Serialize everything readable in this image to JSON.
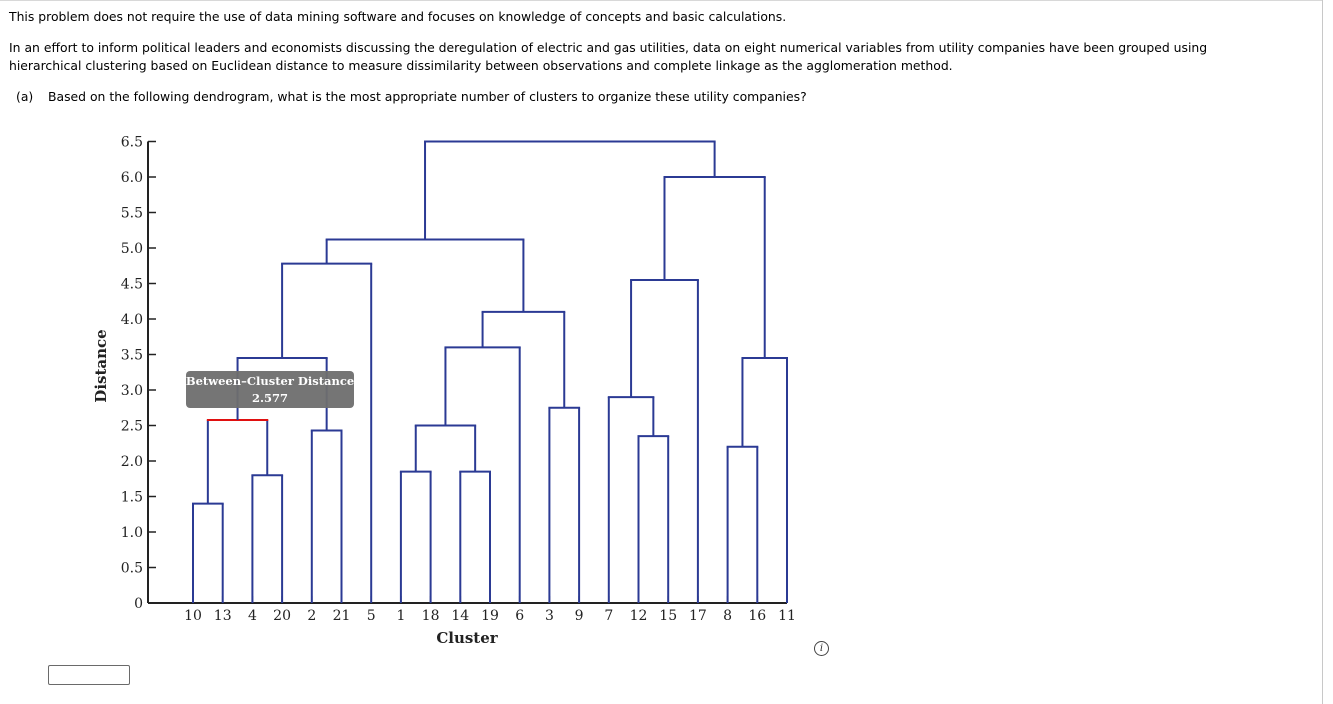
{
  "problem": {
    "intro": "This problem does not require the use of data mining software and focuses on knowledge of concepts and basic calculations.",
    "context_line1": "In an effort to inform political leaders and economists discussing the deregulation of electric and gas utilities, data on eight numerical variables from utility companies have been grouped using",
    "context_line2": "hierarchical clustering based on Euclidean distance to measure dissimilarity between observations and complete linkage as the agglomeration method.",
    "question_label": "(a)",
    "question_text": "Based on the following dendrogram, what is the most appropriate number of clusters to organize these utility companies?"
  },
  "answer": {
    "value": ""
  },
  "info_icon": {
    "glyph": "i"
  },
  "chart_data": {
    "type": "dendrogram",
    "title": "",
    "xlabel": "Cluster",
    "ylabel": "Distance",
    "ylim": [
      0,
      6.5
    ],
    "y_ticks": [
      "0",
      "0.5",
      "1.0",
      "1.5",
      "2.0",
      "2.5",
      "3.0",
      "3.5",
      "4.0",
      "4.5",
      "5.0",
      "5.5",
      "6.0",
      "6.5"
    ],
    "leaf_order": [
      "10",
      "13",
      "4",
      "20",
      "2",
      "21",
      "5",
      "1",
      "18",
      "14",
      "19",
      "6",
      "3",
      "9",
      "7",
      "12",
      "15",
      "17",
      "8",
      "16",
      "11"
    ],
    "merges": [
      {
        "left": "10",
        "right": "13",
        "height": 1.4
      },
      {
        "left": "4",
        "right": "20",
        "height": 1.8
      },
      {
        "left": "1",
        "right": "18",
        "height": 1.85
      },
      {
        "left": "14",
        "right": "19",
        "height": 1.85
      },
      {
        "left": "8",
        "right": "16",
        "height": 2.2
      },
      {
        "left": "12",
        "right": "15",
        "height": 2.35
      },
      {
        "left": "2",
        "right": "21",
        "height": 2.43
      },
      {
        "left": "{1,18}",
        "right": "{14,19}",
        "height": 2.5
      },
      {
        "left": "{10,13}",
        "right": "{4,20}",
        "height": 2.577,
        "highlighted": true
      },
      {
        "left": "3",
        "right": "9",
        "height": 2.75
      },
      {
        "left": "7",
        "right": "{12,15}",
        "height": 2.9
      },
      {
        "left": "{8,16}",
        "right": "11",
        "height": 3.45
      },
      {
        "left": "{10,13,4,20}",
        "right": "{2,21}",
        "height": 3.45
      },
      {
        "left": "{1,18,14,19}",
        "right": "6",
        "height": 3.6
      },
      {
        "left": "{1,18,14,19,6}",
        "right": "{3,9}",
        "height": 4.1
      },
      {
        "left": "{7,12,15}",
        "right": "17",
        "height": 4.55
      },
      {
        "left": "{10,13,4,20,2,21}",
        "right": "5",
        "height": 4.78
      },
      {
        "left": "{10..5}",
        "right": "{1..9}",
        "height": 5.12
      },
      {
        "left": "{7,12,15,17}",
        "right": "{8,16,11}",
        "height": 6.0
      },
      {
        "left": "{10..9}",
        "right": "{7..11}",
        "height": 6.5
      }
    ],
    "tooltip": {
      "title": "Between–Cluster Distance",
      "value": "2.577"
    },
    "colors": {
      "link": "#2b3a94",
      "highlight": "#e01010",
      "axis": "#222222",
      "tooltip_bg": "#6e6e6e"
    }
  }
}
